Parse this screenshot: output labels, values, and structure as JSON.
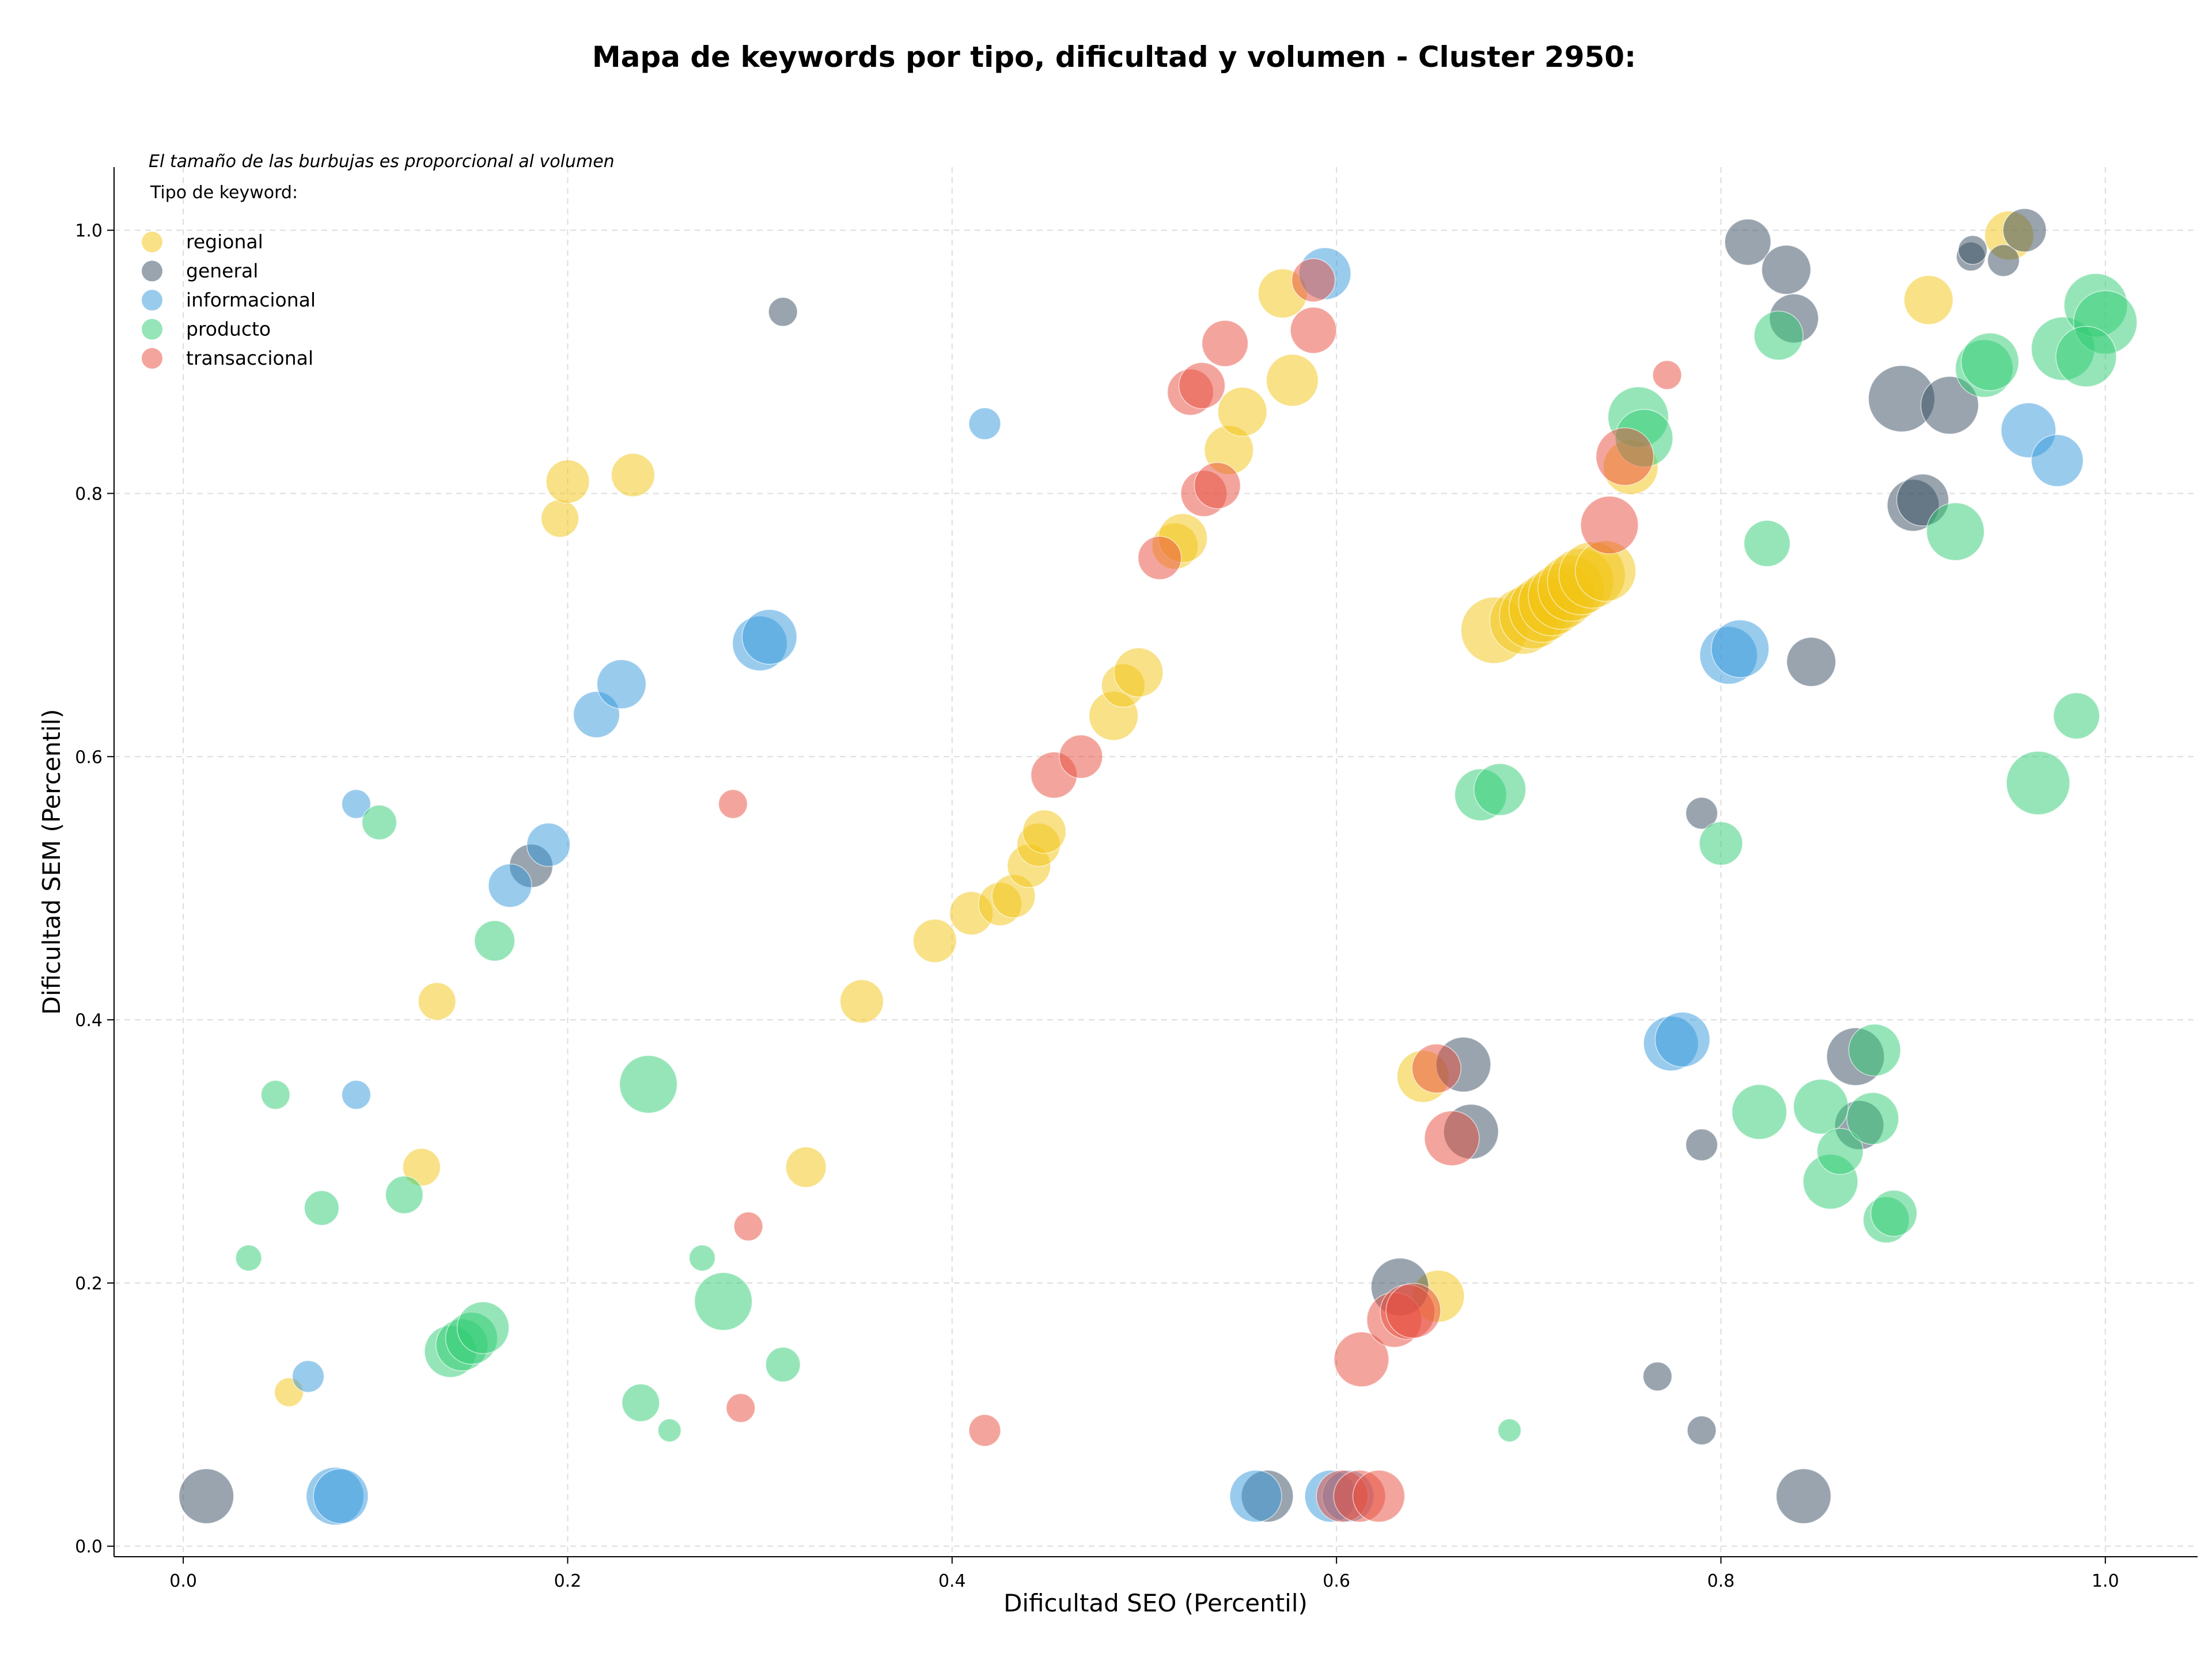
{
  "chart_data": {
    "type": "scatter",
    "title": "Mapa de keywords por tipo, dificultad y volumen - Cluster 2950:",
    "xlabel": "Dificultad SEO (Percentil)",
    "ylabel": "Dificultad SEM (Percentil)",
    "xlim": [
      -0.036,
      1.048
    ],
    "ylim": [
      -0.008,
      1.048
    ],
    "xticks": [
      "0.0",
      "0.2",
      "0.4",
      "0.6",
      "0.8",
      "1.0"
    ],
    "yticks": [
      "0.0",
      "0.2",
      "0.4",
      "0.6",
      "0.8",
      "1.0"
    ],
    "grid": true,
    "size_note": "El tamaño de las burbujas es proporcional al volumen",
    "legend_title": "Tipo de keyword:",
    "legend_position": "top-left",
    "series": [
      {
        "name": "regional",
        "color": "#f1c40f",
        "points": [
          [
            0.055,
            0.117,
            10
          ],
          [
            0.124,
            0.288,
            13
          ],
          [
            0.132,
            0.414,
            13
          ],
          [
            0.196,
            0.781,
            13
          ],
          [
            0.2,
            0.809,
            15
          ],
          [
            0.234,
            0.814,
            15
          ],
          [
            0.324,
            0.288,
            14
          ],
          [
            0.353,
            0.414,
            15
          ],
          [
            0.391,
            0.46,
            15
          ],
          [
            0.41,
            0.481,
            15
          ],
          [
            0.425,
            0.488,
            15
          ],
          [
            0.432,
            0.494,
            15
          ],
          [
            0.44,
            0.517,
            15
          ],
          [
            0.445,
            0.533,
            15
          ],
          [
            0.448,
            0.543,
            15
          ],
          [
            0.484,
            0.631,
            17
          ],
          [
            0.489,
            0.654,
            15
          ],
          [
            0.497,
            0.664,
            17
          ],
          [
            0.516,
            0.76,
            16
          ],
          [
            0.52,
            0.766,
            17
          ],
          [
            0.544,
            0.833,
            17
          ],
          [
            0.551,
            0.862,
            17
          ],
          [
            0.577,
            0.886,
            18
          ],
          [
            0.572,
            0.952,
            17
          ],
          [
            0.645,
            0.357,
            18
          ],
          [
            0.653,
            0.19,
            18
          ],
          [
            0.682,
            0.696,
            23
          ],
          [
            0.697,
            0.703,
            23
          ],
          [
            0.702,
            0.707,
            23
          ],
          [
            0.707,
            0.712,
            23
          ],
          [
            0.712,
            0.717,
            23
          ],
          [
            0.717,
            0.722,
            23
          ],
          [
            0.722,
            0.728,
            23
          ],
          [
            0.727,
            0.733,
            23
          ],
          [
            0.733,
            0.738,
            23
          ],
          [
            0.74,
            0.741,
            21
          ],
          [
            0.753,
            0.82,
            19
          ],
          [
            0.908,
            0.947,
            17
          ],
          [
            0.95,
            0.996,
            17
          ]
        ]
      },
      {
        "name": "general",
        "color": "#34495e",
        "points": [
          [
            0.012,
            0.038,
            19
          ],
          [
            0.181,
            0.517,
            15
          ],
          [
            0.312,
            0.938,
            10
          ],
          [
            0.564,
            0.038,
            18
          ],
          [
            0.633,
            0.197,
            20
          ],
          [
            0.666,
            0.366,
            19
          ],
          [
            0.67,
            0.315,
            19
          ],
          [
            0.767,
            0.129,
            10
          ],
          [
            0.79,
            0.088,
            10
          ],
          [
            0.79,
            0.557,
            11
          ],
          [
            0.79,
            0.305,
            11
          ],
          [
            0.814,
            0.991,
            16
          ],
          [
            0.834,
            0.97,
            17
          ],
          [
            0.838,
            0.933,
            17
          ],
          [
            0.847,
            0.672,
            17
          ],
          [
            0.843,
            0.038,
            19
          ],
          [
            0.87,
            0.372,
            20
          ],
          [
            0.872,
            0.32,
            17
          ],
          [
            0.894,
            0.872,
            23
          ],
          [
            0.9,
            0.791,
            18
          ],
          [
            0.905,
            0.795,
            18
          ],
          [
            0.919,
            0.867,
            20
          ],
          [
            0.93,
            0.98,
            10
          ],
          [
            0.931,
            0.985,
            10
          ],
          [
            0.947,
            0.977,
            11
          ],
          [
            0.958,
            1.0,
            15
          ]
        ]
      },
      {
        "name": "informacional",
        "color": "#3498db",
        "points": [
          [
            0.065,
            0.129,
            11
          ],
          [
            0.079,
            0.038,
            20
          ],
          [
            0.082,
            0.038,
            19
          ],
          [
            0.09,
            0.564,
            10
          ],
          [
            0.09,
            0.343,
            10
          ],
          [
            0.17,
            0.502,
            15
          ],
          [
            0.19,
            0.533,
            15
          ],
          [
            0.215,
            0.632,
            16
          ],
          [
            0.228,
            0.655,
            17
          ],
          [
            0.3,
            0.686,
            19
          ],
          [
            0.305,
            0.691,
            19
          ],
          [
            0.417,
            0.853,
            11
          ],
          [
            0.558,
            0.038,
            18
          ],
          [
            0.594,
            0.967,
            18
          ],
          [
            0.597,
            0.038,
            18
          ],
          [
            0.606,
            0.038,
            18
          ],
          [
            0.774,
            0.382,
            19
          ],
          [
            0.78,
            0.385,
            19
          ],
          [
            0.804,
            0.677,
            20
          ],
          [
            0.81,
            0.682,
            20
          ],
          [
            0.96,
            0.848,
            19
          ],
          [
            0.975,
            0.825,
            18
          ]
        ]
      },
      {
        "name": "producto",
        "color": "#2ecc71",
        "points": [
          [
            0.034,
            0.219,
            9
          ],
          [
            0.048,
            0.343,
            10
          ],
          [
            0.072,
            0.257,
            12
          ],
          [
            0.102,
            0.55,
            12
          ],
          [
            0.115,
            0.267,
            13
          ],
          [
            0.139,
            0.148,
            18
          ],
          [
            0.145,
            0.153,
            18
          ],
          [
            0.15,
            0.158,
            18
          ],
          [
            0.156,
            0.166,
            18
          ],
          [
            0.162,
            0.46,
            14
          ],
          [
            0.242,
            0.351,
            20
          ],
          [
            0.238,
            0.109,
            13
          ],
          [
            0.253,
            0.088,
            8
          ],
          [
            0.27,
            0.219,
            9
          ],
          [
            0.281,
            0.186,
            20
          ],
          [
            0.312,
            0.138,
            12
          ],
          [
            0.69,
            0.088,
            8
          ],
          [
            0.675,
            0.571,
            18
          ],
          [
            0.685,
            0.575,
            18
          ],
          [
            0.757,
            0.858,
            21
          ],
          [
            0.76,
            0.842,
            20
          ],
          [
            0.8,
            0.534,
            15
          ],
          [
            0.82,
            0.33,
            19
          ],
          [
            0.83,
            0.92,
            17
          ],
          [
            0.824,
            0.762,
            16
          ],
          [
            0.852,
            0.334,
            19
          ],
          [
            0.857,
            0.277,
            19
          ],
          [
            0.862,
            0.3,
            16
          ],
          [
            0.879,
            0.325,
            18
          ],
          [
            0.88,
            0.377,
            18
          ],
          [
            0.886,
            0.248,
            16
          ],
          [
            0.89,
            0.253,
            16
          ],
          [
            0.922,
            0.771,
            20
          ],
          [
            0.937,
            0.895,
            20
          ],
          [
            0.94,
            0.9,
            20
          ],
          [
            0.965,
            0.58,
            22
          ],
          [
            0.978,
            0.91,
            22
          ],
          [
            0.985,
            0.631,
            16
          ],
          [
            0.995,
            0.943,
            22
          ],
          [
            1.0,
            0.93,
            22
          ],
          [
            0.99,
            0.904,
            21
          ]
        ]
      },
      {
        "name": "transaccional",
        "color": "#e74c3c",
        "points": [
          [
            0.286,
            0.564,
            10
          ],
          [
            0.29,
            0.105,
            10
          ],
          [
            0.294,
            0.243,
            10
          ],
          [
            0.417,
            0.088,
            11
          ],
          [
            0.453,
            0.586,
            16
          ],
          [
            0.467,
            0.6,
            15
          ],
          [
            0.508,
            0.751,
            15
          ],
          [
            0.524,
            0.877,
            16
          ],
          [
            0.53,
            0.882,
            16
          ],
          [
            0.531,
            0.8,
            16
          ],
          [
            0.538,
            0.806,
            16
          ],
          [
            0.542,
            0.914,
            16
          ],
          [
            0.588,
            0.962,
            15
          ],
          [
            0.588,
            0.924,
            16
          ],
          [
            0.613,
            0.142,
            19
          ],
          [
            0.603,
            0.038,
            18
          ],
          [
            0.612,
            0.038,
            18
          ],
          [
            0.622,
            0.038,
            18
          ],
          [
            0.63,
            0.172,
            19
          ],
          [
            0.637,
            0.178,
            19
          ],
          [
            0.64,
            0.179,
            19
          ],
          [
            0.652,
            0.363,
            17
          ],
          [
            0.66,
            0.31,
            19
          ],
          [
            0.742,
            0.776,
            20
          ],
          [
            0.75,
            0.828,
            20
          ],
          [
            0.772,
            0.89,
            10
          ]
        ]
      }
    ]
  }
}
